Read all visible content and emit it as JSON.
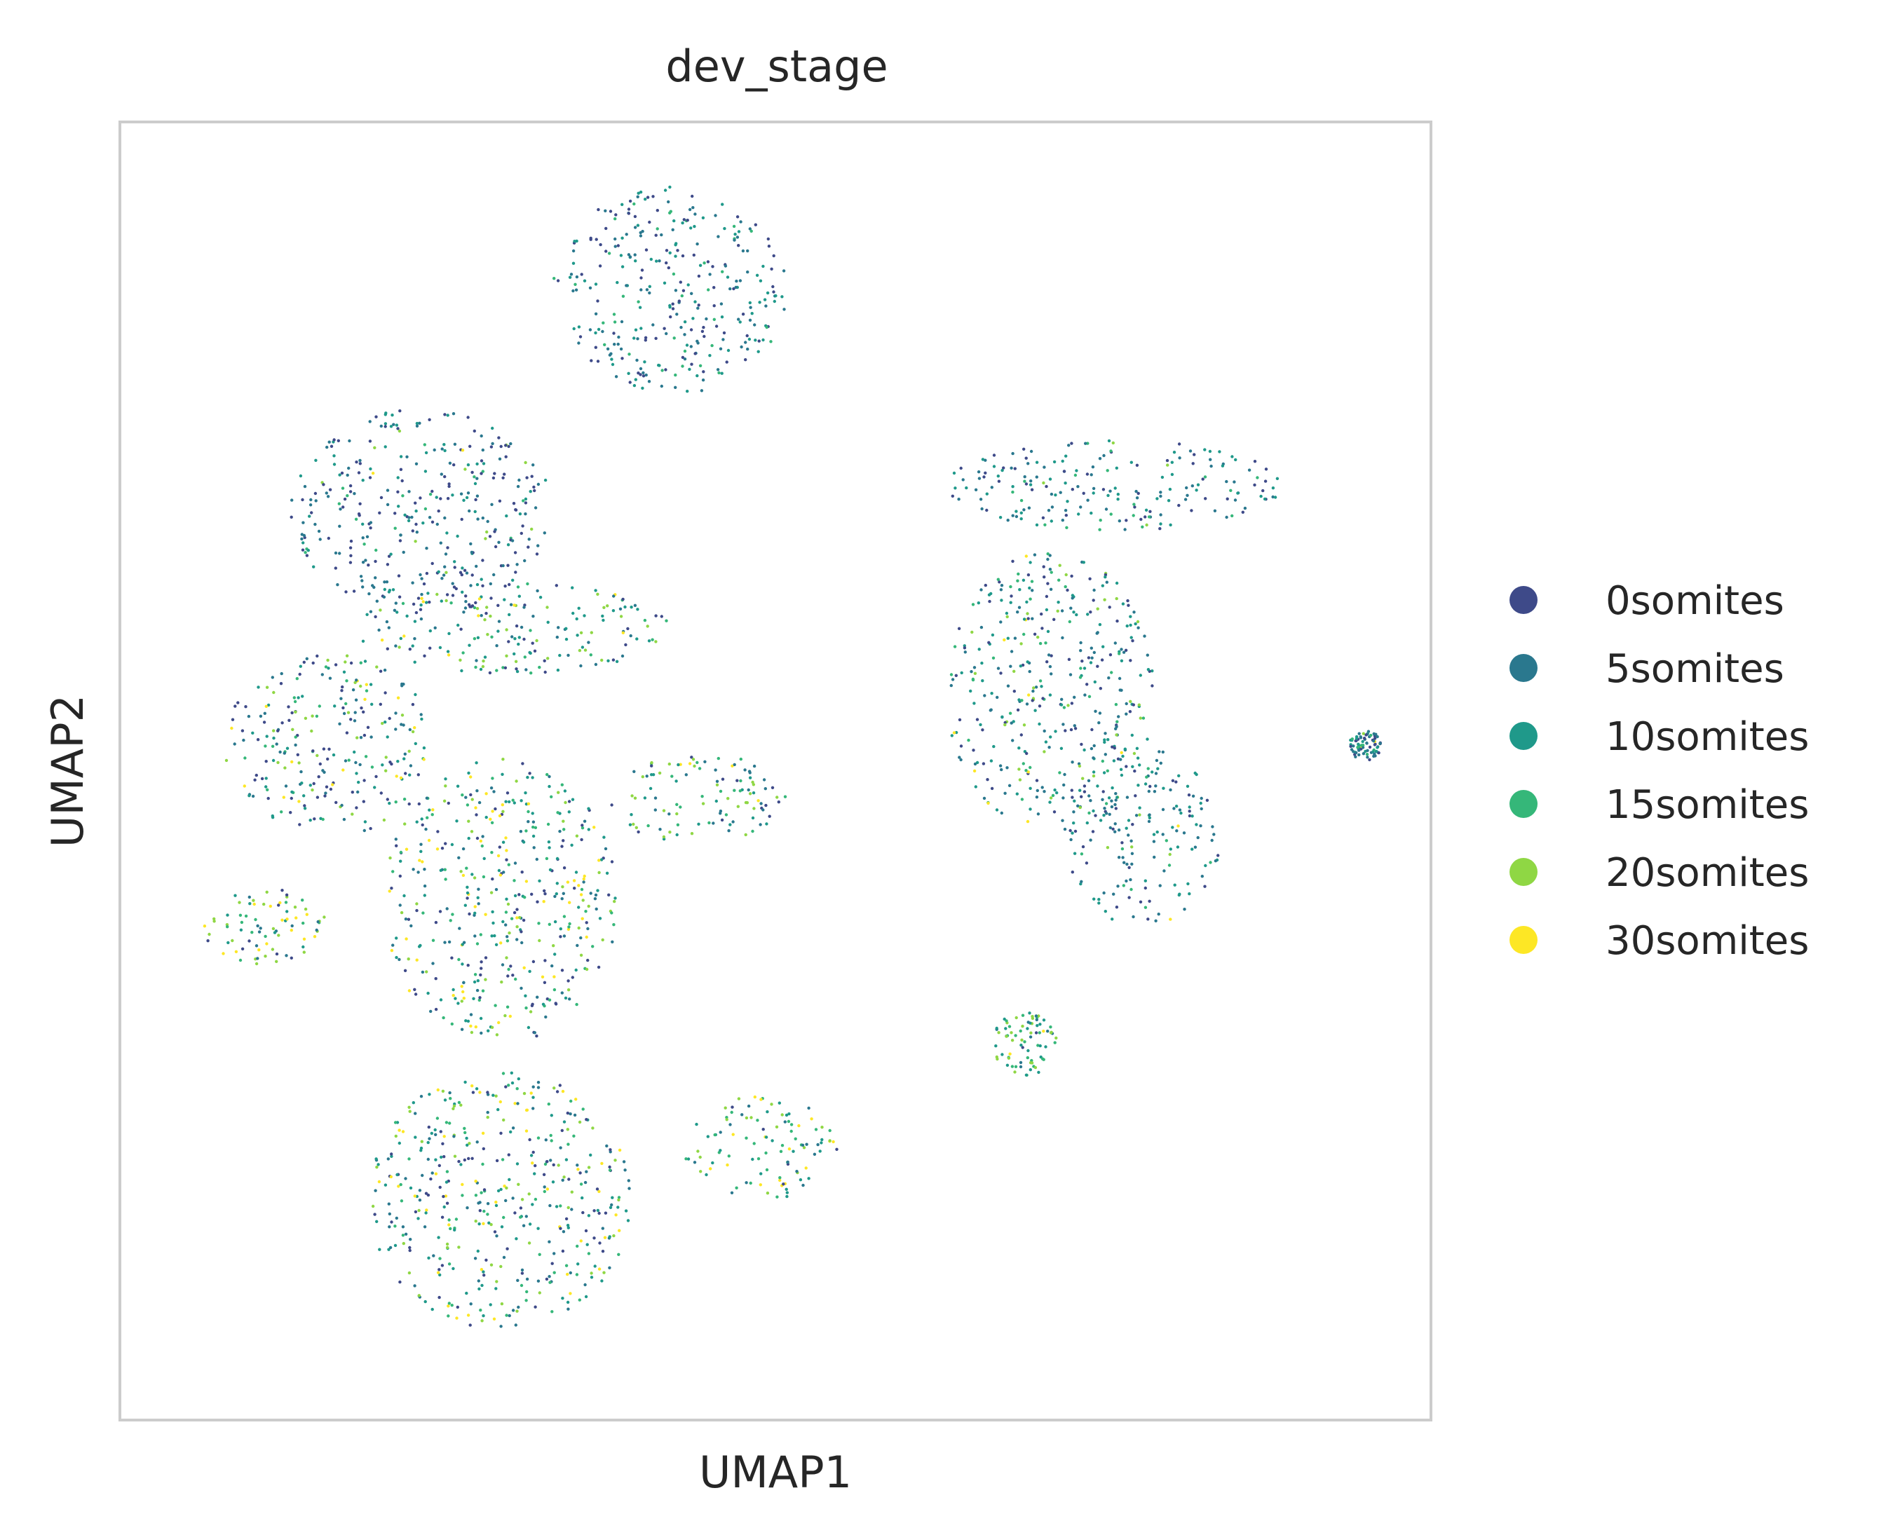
{
  "chart_data": {
    "type": "scatter",
    "title": "dev_stage",
    "xlabel": "UMAP1",
    "ylabel": "UMAP2",
    "xlim": [
      0,
      100
    ],
    "ylim": [
      0,
      100
    ],
    "grid": false,
    "ticks_shown": false,
    "legend_position": "right",
    "point_size": "tiny",
    "categories": [
      {
        "name": "0somites",
        "color": "#3e4a89"
      },
      {
        "name": "5somites",
        "color": "#2a788e"
      },
      {
        "name": "10somites",
        "color": "#1f998a"
      },
      {
        "name": "15somites",
        "color": "#35b779"
      },
      {
        "name": "20somites",
        "color": "#8fd744"
      },
      {
        "name": "30somites",
        "color": "#fde725"
      }
    ],
    "clusters": [
      {
        "cx": 42,
        "cy": 87,
        "rx": 9,
        "ry": 8,
        "weights": [
          0.3,
          0.3,
          0.3,
          0.12,
          0.06,
          0.02
        ]
      },
      {
        "cx": 23,
        "cy": 70,
        "rx": 10,
        "ry": 8,
        "weights": [
          0.35,
          0.35,
          0.2,
          0.06,
          0.03,
          0.01
        ]
      },
      {
        "cx": 30,
        "cy": 61,
        "rx": 12,
        "ry": 3.5,
        "weights": [
          0.15,
          0.25,
          0.3,
          0.12,
          0.15,
          0.03
        ]
      },
      {
        "cx": 76,
        "cy": 72,
        "rx": 13,
        "ry": 3.5,
        "weights": [
          0.2,
          0.35,
          0.35,
          0.08,
          0.05,
          0.02
        ]
      },
      {
        "cx": 16,
        "cy": 52,
        "rx": 8,
        "ry": 7,
        "weights": [
          0.3,
          0.25,
          0.2,
          0.1,
          0.1,
          0.05
        ]
      },
      {
        "cx": 29,
        "cy": 40,
        "rx": 9,
        "ry": 11,
        "weights": [
          0.2,
          0.2,
          0.22,
          0.14,
          0.12,
          0.12
        ]
      },
      {
        "cx": 44,
        "cy": 48,
        "rx": 7,
        "ry": 3.5,
        "weights": [
          0.12,
          0.2,
          0.25,
          0.18,
          0.2,
          0.05
        ]
      },
      {
        "cx": 71,
        "cy": 56,
        "rx": 8,
        "ry": 11,
        "weights": [
          0.2,
          0.3,
          0.3,
          0.1,
          0.08,
          0.02
        ]
      },
      {
        "cx": 78,
        "cy": 45,
        "rx": 6,
        "ry": 7,
        "weights": [
          0.2,
          0.35,
          0.3,
          0.08,
          0.05,
          0.02
        ]
      },
      {
        "cx": 69,
        "cy": 29,
        "rx": 2.5,
        "ry": 2.5,
        "weights": [
          0.05,
          0.15,
          0.2,
          0.25,
          0.3,
          0.05
        ]
      },
      {
        "cx": 29,
        "cy": 17,
        "rx": 10,
        "ry": 10,
        "weights": [
          0.2,
          0.22,
          0.22,
          0.13,
          0.13,
          0.1
        ]
      },
      {
        "cx": 49,
        "cy": 21,
        "rx": 6,
        "ry": 4,
        "weights": [
          0.08,
          0.15,
          0.3,
          0.2,
          0.17,
          0.1
        ]
      },
      {
        "cx": 11,
        "cy": 38,
        "rx": 5,
        "ry": 3,
        "weights": [
          0.08,
          0.12,
          0.15,
          0.15,
          0.3,
          0.2
        ]
      },
      {
        "cx": 95,
        "cy": 52,
        "rx": 1.2,
        "ry": 1.2,
        "weights": [
          0.3,
          0.4,
          0.2,
          0.05,
          0.03,
          0.02
        ]
      }
    ]
  }
}
